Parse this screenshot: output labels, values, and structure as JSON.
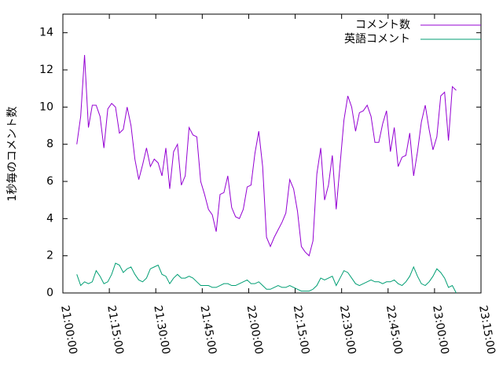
{
  "chart_data": {
    "type": "line",
    "y_label": "1秒毎のコメント数",
    "x": [
      "21:04:30",
      "21:05:45",
      "21:07:00",
      "21:08:15",
      "21:09:30",
      "21:10:45",
      "21:12:00",
      "21:13:15",
      "21:14:30",
      "21:15:45",
      "21:17:00",
      "21:18:15",
      "21:19:30",
      "21:20:45",
      "21:22:00",
      "21:23:15",
      "21:24:30",
      "21:25:45",
      "21:27:00",
      "21:28:15",
      "21:29:30",
      "21:30:45",
      "21:32:00",
      "21:33:15",
      "21:34:30",
      "21:35:45",
      "21:37:00",
      "21:38:15",
      "21:39:30",
      "21:40:45",
      "21:42:00",
      "21:43:15",
      "21:44:30",
      "21:45:45",
      "21:47:00",
      "21:48:15",
      "21:49:30",
      "21:50:45",
      "21:52:00",
      "21:53:15",
      "21:54:30",
      "21:55:45",
      "21:57:00",
      "21:58:15",
      "21:59:30",
      "22:00:45",
      "22:02:00",
      "22:03:15",
      "22:04:30",
      "22:05:45",
      "22:07:00",
      "22:08:15",
      "22:09:30",
      "22:10:45",
      "22:12:00",
      "22:13:15",
      "22:14:30",
      "22:15:45",
      "22:17:00",
      "22:18:15",
      "22:19:30",
      "22:20:45",
      "22:22:00",
      "22:23:15",
      "22:24:30",
      "22:25:45",
      "22:27:00",
      "22:28:15",
      "22:29:30",
      "22:30:45",
      "22:32:00",
      "22:33:15",
      "22:34:30",
      "22:35:45",
      "22:37:00",
      "22:38:15",
      "22:39:30",
      "22:40:45",
      "22:42:00",
      "22:43:15",
      "22:44:30",
      "22:45:45",
      "22:47:00",
      "22:48:15",
      "22:49:30",
      "22:50:45",
      "22:52:00",
      "22:53:15",
      "22:54:30",
      "22:55:45",
      "22:57:00",
      "22:58:15",
      "22:59:30",
      "23:00:45",
      "23:02:00",
      "23:03:15",
      "23:04:30",
      "23:05:45",
      "23:07:00"
    ],
    "series": [
      {
        "name": "コメント数",
        "color": "#9400d3",
        "values": [
          8.0,
          9.5,
          12.8,
          8.9,
          10.1,
          10.1,
          9.5,
          7.8,
          9.9,
          10.2,
          10.0,
          8.6,
          8.8,
          10.0,
          9.0,
          7.2,
          6.1,
          6.9,
          7.8,
          6.8,
          7.2,
          7.0,
          6.3,
          7.8,
          5.6,
          7.6,
          8.0,
          5.8,
          6.3,
          8.9,
          8.5,
          8.4,
          6.0,
          5.3,
          4.5,
          4.2,
          3.3,
          5.3,
          5.4,
          6.3,
          4.6,
          4.1,
          4.0,
          4.5,
          5.7,
          5.8,
          7.5,
          8.7,
          6.8,
          3.0,
          2.5,
          3.0,
          3.4,
          3.8,
          4.3,
          6.1,
          5.6,
          4.4,
          2.5,
          2.2,
          2.0,
          2.8,
          6.4,
          7.8,
          5.0,
          5.8,
          7.4,
          4.5,
          6.9,
          9.3,
          10.6,
          10.0,
          8.7,
          9.7,
          9.8,
          10.1,
          9.5,
          8.1,
          8.1,
          9.1,
          9.8,
          7.6,
          8.9,
          6.8,
          7.3,
          7.4,
          8.6,
          6.3,
          7.6,
          9.2,
          10.1,
          8.8,
          7.7,
          8.4,
          10.6,
          10.8,
          8.2,
          11.1,
          10.9
        ]
      },
      {
        "name": "英語コメント",
        "color": "#009e73",
        "values": [
          1.0,
          0.4,
          0.6,
          0.5,
          0.6,
          1.2,
          0.9,
          0.5,
          0.6,
          1.0,
          1.6,
          1.5,
          1.1,
          1.3,
          1.4,
          1.0,
          0.7,
          0.6,
          0.8,
          1.3,
          1.4,
          1.5,
          1.0,
          0.9,
          0.5,
          0.8,
          1.0,
          0.8,
          0.8,
          0.9,
          0.8,
          0.6,
          0.4,
          0.4,
          0.4,
          0.3,
          0.3,
          0.4,
          0.5,
          0.5,
          0.4,
          0.4,
          0.5,
          0.6,
          0.7,
          0.5,
          0.5,
          0.6,
          0.4,
          0.2,
          0.2,
          0.3,
          0.4,
          0.3,
          0.3,
          0.4,
          0.3,
          0.2,
          0.1,
          0.1,
          0.1,
          0.2,
          0.4,
          0.8,
          0.7,
          0.8,
          0.9,
          0.4,
          0.8,
          1.2,
          1.1,
          0.8,
          0.5,
          0.4,
          0.5,
          0.6,
          0.7,
          0.6,
          0.6,
          0.5,
          0.6,
          0.6,
          0.7,
          0.5,
          0.4,
          0.6,
          0.9,
          1.4,
          0.9,
          0.5,
          0.4,
          0.6,
          0.9,
          1.3,
          1.1,
          0.8,
          0.3,
          0.4,
          0.0
        ]
      }
    ],
    "xlim": [
      "21:00:00",
      "23:15:00"
    ],
    "xticks": [
      "21:00:00",
      "21:15:00",
      "21:30:00",
      "21:45:00",
      "22:00:00",
      "22:15:00",
      "22:30:00",
      "22:45:00",
      "23:00:00",
      "23:15:00"
    ],
    "ylim": [
      0,
      15
    ],
    "yticks": [
      0,
      2,
      4,
      6,
      8,
      10,
      12,
      14
    ],
    "legend": "top-right"
  }
}
